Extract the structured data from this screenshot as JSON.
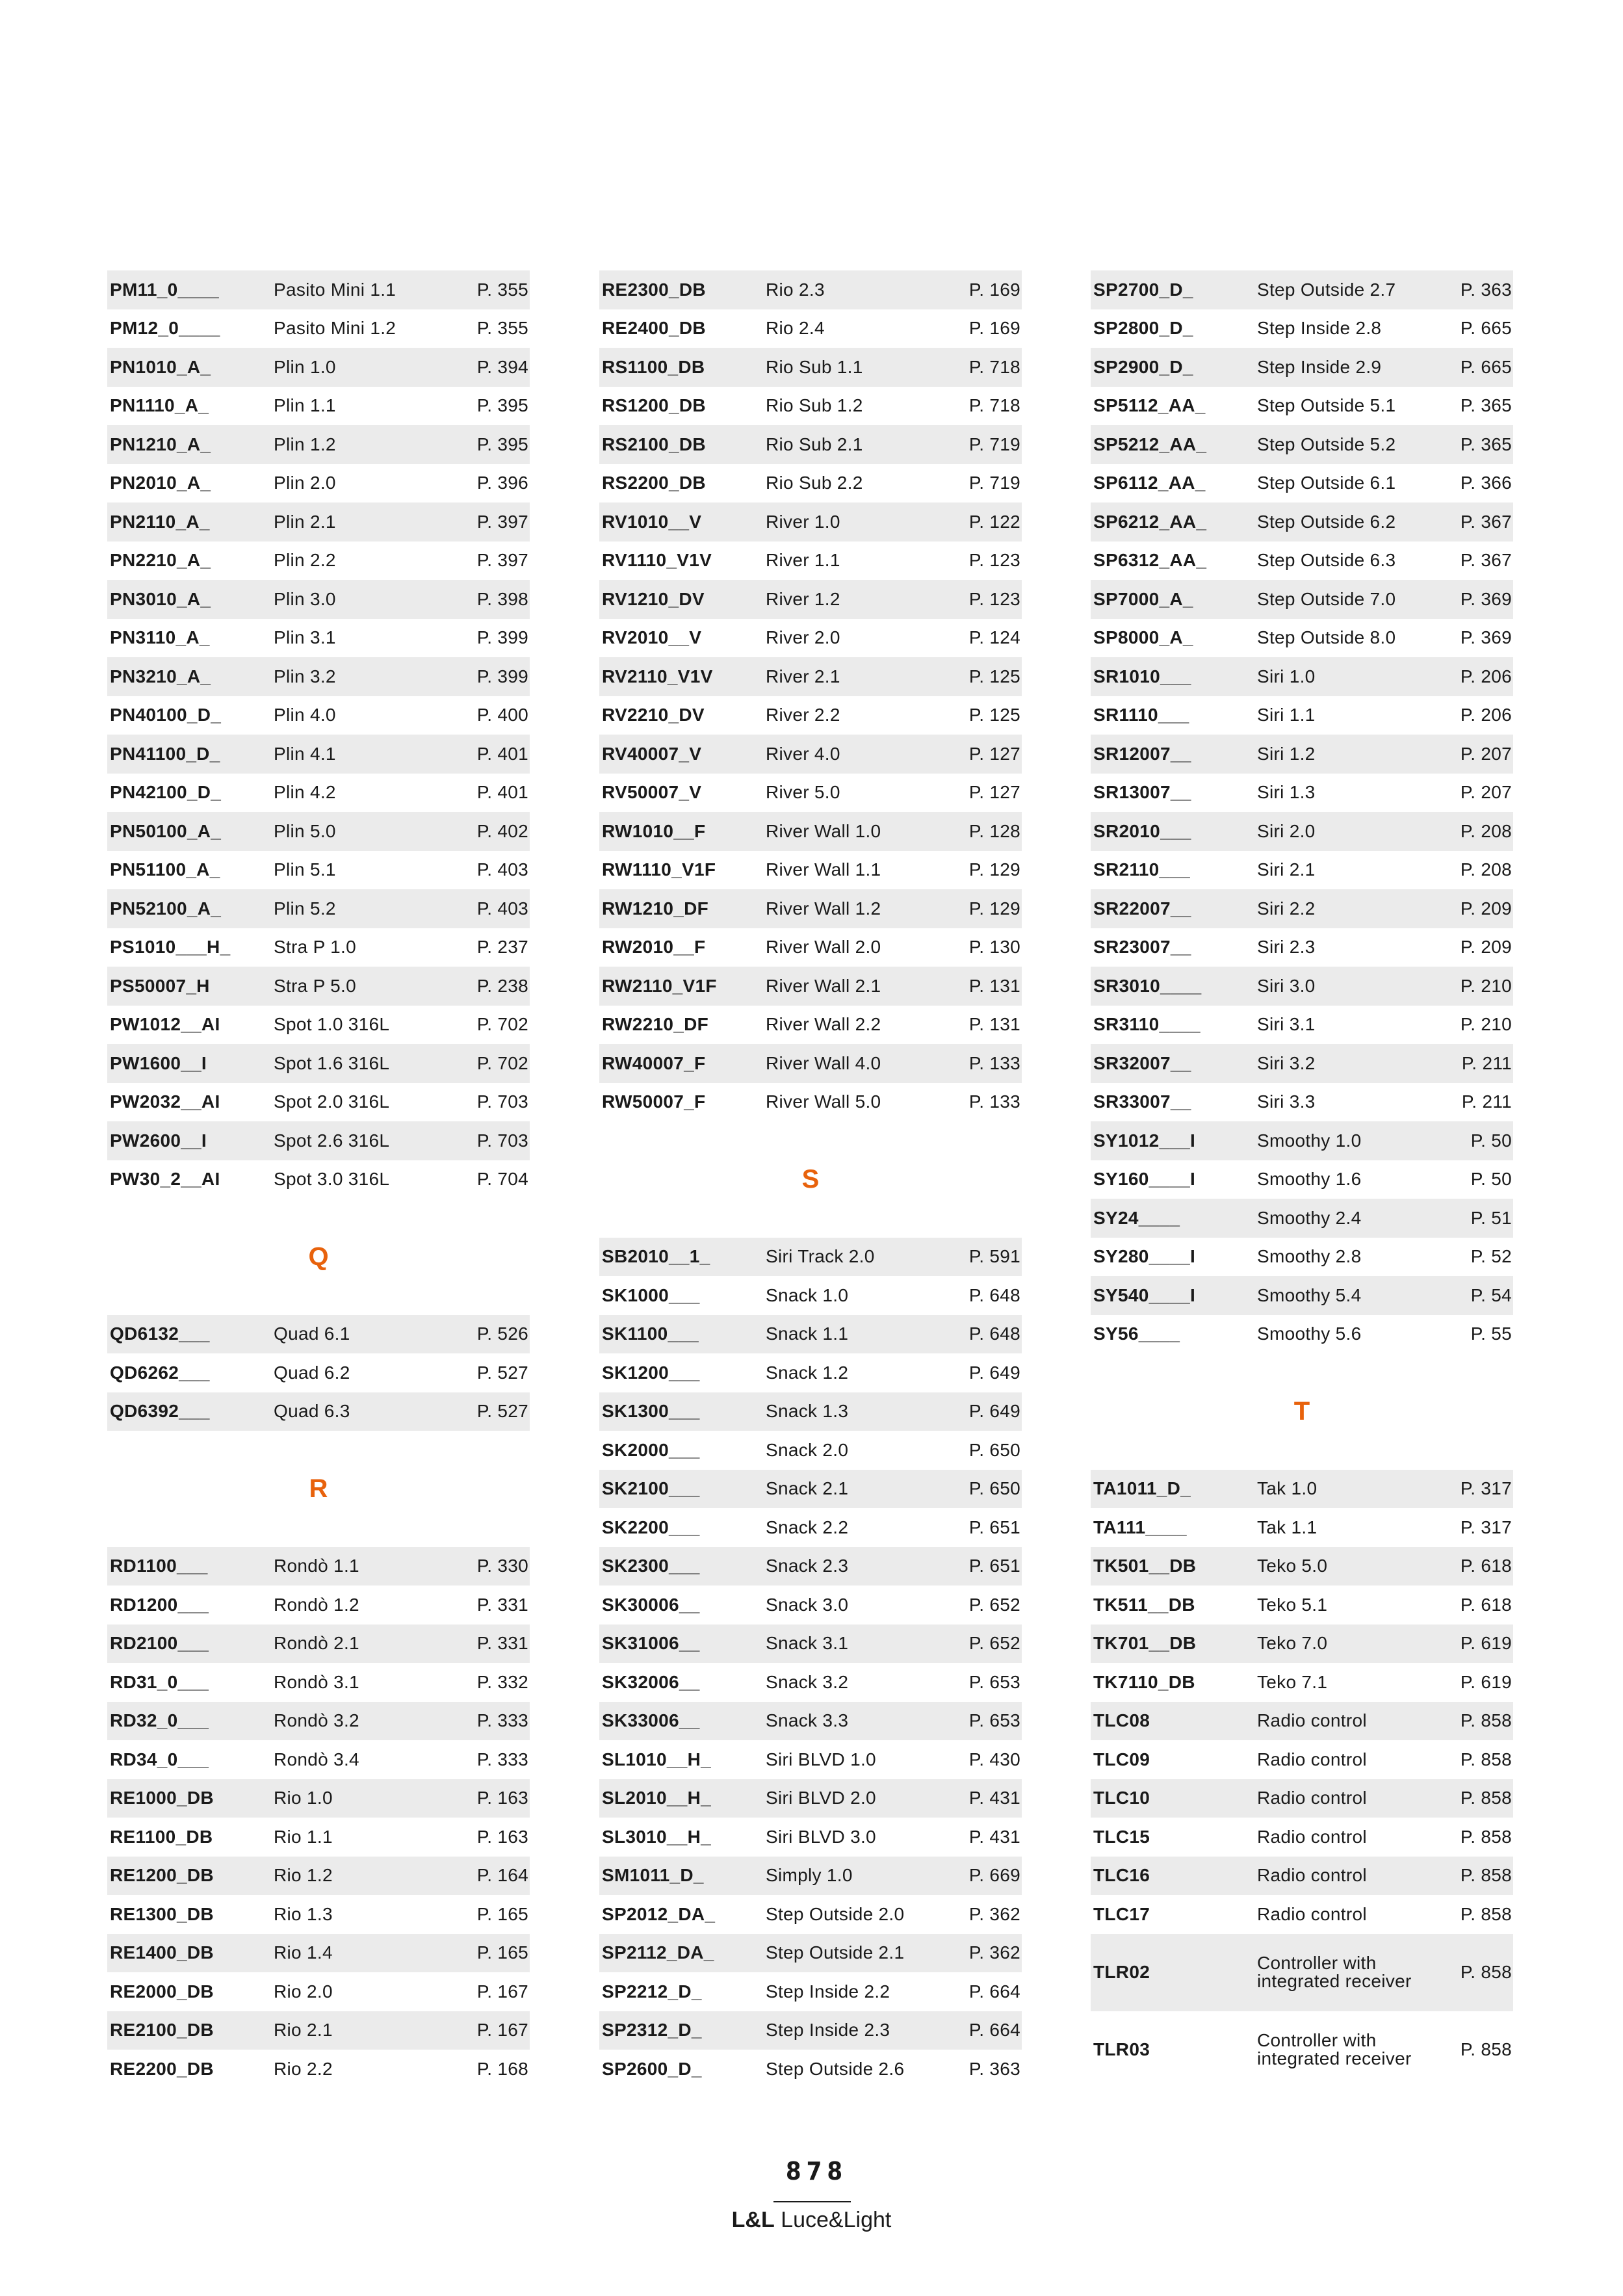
{
  "accent_color": "#e8620c",
  "row_shade_color": "#ebebeb",
  "columns": [
    {
      "blocks": [
        {
          "letter": "",
          "rows": [
            {
              "code": "PM11_0____",
              "name": "Pasito Mini 1.1",
              "page": "P. 355"
            },
            {
              "code": "PM12_0____",
              "name": "Pasito Mini 1.2",
              "page": "P. 355"
            },
            {
              "code": "PN1010_A_",
              "name": "Plin 1.0",
              "page": "P. 394"
            },
            {
              "code": "PN1110_A_",
              "name": "Plin 1.1",
              "page": "P. 395"
            },
            {
              "code": "PN1210_A_",
              "name": "Plin 1.2",
              "page": "P. 395"
            },
            {
              "code": "PN2010_A_",
              "name": "Plin 2.0",
              "page": "P. 396"
            },
            {
              "code": "PN2110_A_",
              "name": "Plin 2.1",
              "page": "P. 397"
            },
            {
              "code": "PN2210_A_",
              "name": "Plin 2.2",
              "page": "P. 397"
            },
            {
              "code": "PN3010_A_",
              "name": "Plin 3.0",
              "page": "P. 398"
            },
            {
              "code": "PN3110_A_",
              "name": "Plin 3.1",
              "page": "P. 399"
            },
            {
              "code": "PN3210_A_",
              "name": "Plin 3.2",
              "page": "P. 399"
            },
            {
              "code": "PN40100_D_",
              "name": "Plin 4.0",
              "page": "P. 400"
            },
            {
              "code": "PN41100_D_",
              "name": "Plin 4.1",
              "page": "P. 401"
            },
            {
              "code": "PN42100_D_",
              "name": "Plin 4.2",
              "page": "P. 401"
            },
            {
              "code": "PN50100_A_",
              "name": "Plin 5.0",
              "page": "P. 402"
            },
            {
              "code": "PN51100_A_",
              "name": "Plin 5.1",
              "page": "P. 403"
            },
            {
              "code": "PN52100_A_",
              "name": "Plin 5.2",
              "page": "P. 403"
            },
            {
              "code": "PS1010___H_",
              "name": "Stra P 1.0",
              "page": "P. 237"
            },
            {
              "code": "PS50007_H",
              "name": "Stra P 5.0",
              "page": "P. 238"
            },
            {
              "code": "PW1012__AI",
              "name": "Spot 1.0 316L",
              "page": "P. 702"
            },
            {
              "code": "PW1600__I",
              "name": "Spot 1.6 316L",
              "page": "P. 702"
            },
            {
              "code": "PW2032__AI",
              "name": "Spot 2.0 316L",
              "page": "P. 703"
            },
            {
              "code": "PW2600__I",
              "name": "Spot 2.6 316L",
              "page": "P. 703"
            },
            {
              "code": "PW30_2__AI",
              "name": "Spot 3.0 316L",
              "page": "P. 704"
            }
          ]
        },
        {
          "letter": "Q",
          "rows": [
            {
              "code": "QD6132___",
              "name": "Quad 6.1",
              "page": "P. 526"
            },
            {
              "code": "QD6262___",
              "name": "Quad 6.2",
              "page": "P. 527"
            },
            {
              "code": "QD6392___",
              "name": "Quad 6.3",
              "page": "P. 527"
            }
          ]
        },
        {
          "letter": "R",
          "rows": [
            {
              "code": "RD1100___",
              "name": "Rondò 1.1",
              "page": "P. 330"
            },
            {
              "code": "RD1200___",
              "name": "Rondò 1.2",
              "page": "P. 331"
            },
            {
              "code": "RD2100___",
              "name": "Rondò 2.1",
              "page": "P. 331"
            },
            {
              "code": "RD31_0___",
              "name": "Rondò 3.1",
              "page": "P. 332"
            },
            {
              "code": "RD32_0___",
              "name": "Rondò 3.2",
              "page": "P. 333"
            },
            {
              "code": "RD34_0___",
              "name": "Rondò 3.4",
              "page": "P. 333"
            },
            {
              "code": "RE1000_DB",
              "name": "Rio 1.0",
              "page": "P. 163"
            },
            {
              "code": "RE1100_DB",
              "name": "Rio 1.1",
              "page": "P. 163"
            },
            {
              "code": "RE1200_DB",
              "name": "Rio 1.2",
              "page": "P. 164"
            },
            {
              "code": "RE1300_DB",
              "name": "Rio 1.3",
              "page": "P. 165"
            },
            {
              "code": "RE1400_DB",
              "name": "Rio 1.4",
              "page": "P. 165"
            },
            {
              "code": "RE2000_DB",
              "name": "Rio 2.0",
              "page": "P. 167"
            },
            {
              "code": "RE2100_DB",
              "name": "Rio 2.1",
              "page": "P. 167"
            },
            {
              "code": "RE2200_DB",
              "name": "Rio 2.2",
              "page": "P. 168"
            }
          ]
        }
      ]
    },
    {
      "blocks": [
        {
          "letter": "",
          "rows": [
            {
              "code": "RE2300_DB",
              "name": "Rio 2.3",
              "page": "P. 169"
            },
            {
              "code": "RE2400_DB",
              "name": "Rio 2.4",
              "page": "P. 169"
            },
            {
              "code": "RS1100_DB",
              "name": "Rio Sub 1.1",
              "page": "P. 718"
            },
            {
              "code": "RS1200_DB",
              "name": "Rio Sub 1.2",
              "page": "P. 718"
            },
            {
              "code": "RS2100_DB",
              "name": "Rio Sub 2.1",
              "page": "P. 719"
            },
            {
              "code": "RS2200_DB",
              "name": "Rio Sub 2.2",
              "page": "P. 719"
            },
            {
              "code": "RV1010__V",
              "name": "River 1.0",
              "page": "P. 122"
            },
            {
              "code": "RV1110_V1V",
              "name": "River 1.1",
              "page": "P. 123"
            },
            {
              "code": "RV1210_DV",
              "name": "River 1.2",
              "page": "P. 123"
            },
            {
              "code": "RV2010__V",
              "name": "River 2.0",
              "page": "P. 124"
            },
            {
              "code": "RV2110_V1V",
              "name": "River 2.1",
              "page": "P. 125"
            },
            {
              "code": "RV2210_DV",
              "name": "River 2.2",
              "page": "P. 125"
            },
            {
              "code": "RV40007_V",
              "name": "River 4.0",
              "page": "P. 127"
            },
            {
              "code": "RV50007_V",
              "name": "River 5.0",
              "page": "P. 127"
            },
            {
              "code": "RW1010__F",
              "name": "River Wall 1.0",
              "page": "P. 128"
            },
            {
              "code": "RW1110_V1F",
              "name": "River Wall 1.1",
              "page": "P. 129"
            },
            {
              "code": "RW1210_DF",
              "name": "River Wall 1.2",
              "page": "P. 129"
            },
            {
              "code": "RW2010__F",
              "name": "River Wall 2.0",
              "page": "P. 130"
            },
            {
              "code": "RW2110_V1F",
              "name": "River Wall 2.1",
              "page": "P. 131"
            },
            {
              "code": "RW2210_DF",
              "name": "River Wall 2.2",
              "page": "P. 131"
            },
            {
              "code": "RW40007_F",
              "name": "River Wall 4.0",
              "page": "P. 133"
            },
            {
              "code": "RW50007_F",
              "name": "River Wall 5.0",
              "page": "P. 133"
            }
          ]
        },
        {
          "letter": "S",
          "rows": [
            {
              "code": "SB2010__1_",
              "name": "Siri Track 2.0",
              "page": "P. 591"
            },
            {
              "code": "SK1000___",
              "name": "Snack 1.0",
              "page": "P. 648"
            },
            {
              "code": "SK1100___",
              "name": "Snack 1.1",
              "page": "P. 648"
            },
            {
              "code": "SK1200___",
              "name": "Snack 1.2",
              "page": "P. 649"
            },
            {
              "code": "SK1300___",
              "name": "Snack 1.3",
              "page": "P. 649"
            },
            {
              "code": "SK2000___",
              "name": "Snack 2.0",
              "page": "P. 650"
            },
            {
              "code": "SK2100___",
              "name": "Snack 2.1",
              "page": "P. 650"
            },
            {
              "code": "SK2200___",
              "name": "Snack 2.2",
              "page": "P. 651"
            },
            {
              "code": "SK2300___",
              "name": "Snack 2.3",
              "page": "P. 651"
            },
            {
              "code": "SK30006__",
              "name": "Snack 3.0",
              "page": "P. 652"
            },
            {
              "code": "SK31006__",
              "name": "Snack 3.1",
              "page": "P. 652"
            },
            {
              "code": "SK32006__",
              "name": "Snack 3.2",
              "page": "P. 653"
            },
            {
              "code": "SK33006__",
              "name": "Snack 3.3",
              "page": "P. 653"
            },
            {
              "code": "SL1010__H_",
              "name": "Siri BLVD 1.0",
              "page": "P. 430"
            },
            {
              "code": "SL2010__H_",
              "name": "Siri BLVD 2.0",
              "page": "P. 431"
            },
            {
              "code": "SL3010__H_",
              "name": "Siri BLVD 3.0",
              "page": "P. 431"
            },
            {
              "code": "SM1011_D_",
              "name": "Simply 1.0",
              "page": "P. 669"
            },
            {
              "code": "SP2012_DA_",
              "name": "Step Outside 2.0",
              "page": "P. 362"
            },
            {
              "code": "SP2112_DA_",
              "name": "Step Outside 2.1",
              "page": "P. 362"
            },
            {
              "code": "SP2212_D_",
              "name": "Step Inside 2.2",
              "page": "P. 664"
            },
            {
              "code": "SP2312_D_",
              "name": "Step Inside 2.3",
              "page": "P. 664"
            },
            {
              "code": "SP2600_D_",
              "name": "Step Outside 2.6",
              "page": "P. 363"
            }
          ]
        }
      ]
    },
    {
      "blocks": [
        {
          "letter": "",
          "rows": [
            {
              "code": "SP2700_D_",
              "name": "Step Outside 2.7",
              "page": "P. 363"
            },
            {
              "code": "SP2800_D_",
              "name": "Step Inside 2.8",
              "page": "P. 665"
            },
            {
              "code": "SP2900_D_",
              "name": "Step Inside 2.9",
              "page": "P. 665"
            },
            {
              "code": "SP5112_AA_",
              "name": "Step Outside 5.1",
              "page": "P. 365"
            },
            {
              "code": "SP5212_AA_",
              "name": "Step Outside 5.2",
              "page": "P. 365"
            },
            {
              "code": "SP6112_AA_",
              "name": "Step Outside 6.1",
              "page": "P. 366"
            },
            {
              "code": "SP6212_AA_",
              "name": "Step Outside 6.2",
              "page": "P. 367"
            },
            {
              "code": "SP6312_AA_",
              "name": "Step Outside 6.3",
              "page": "P. 367"
            },
            {
              "code": "SP7000_A_",
              "name": "Step Outside 7.0",
              "page": "P. 369"
            },
            {
              "code": "SP8000_A_",
              "name": "Step Outside 8.0",
              "page": "P. 369"
            },
            {
              "code": "SR1010___",
              "name": "Siri 1.0",
              "page": "P. 206"
            },
            {
              "code": "SR1110___",
              "name": "Siri 1.1",
              "page": "P. 206"
            },
            {
              "code": "SR12007__",
              "name": "Siri 1.2",
              "page": "P. 207"
            },
            {
              "code": "SR13007__",
              "name": "Siri 1.3",
              "page": "P. 207"
            },
            {
              "code": "SR2010___",
              "name": "Siri 2.0",
              "page": "P. 208"
            },
            {
              "code": "SR2110___",
              "name": "Siri 2.1",
              "page": "P. 208"
            },
            {
              "code": "SR22007__",
              "name": "Siri 2.2",
              "page": "P. 209"
            },
            {
              "code": "SR23007__",
              "name": "Siri 2.3",
              "page": "P. 209"
            },
            {
              "code": "SR3010____",
              "name": "Siri 3.0",
              "page": "P. 210"
            },
            {
              "code": "SR3110____",
              "name": "Siri 3.1",
              "page": "P. 210"
            },
            {
              "code": "SR32007__",
              "name": "Siri 3.2",
              "page": "P. 211"
            },
            {
              "code": "SR33007__",
              "name": "Siri 3.3",
              "page": "P. 211"
            },
            {
              "code": "SY1012___I",
              "name": "Smoothy 1.0",
              "page": "P. 50"
            },
            {
              "code": "SY160____I",
              "name": "Smoothy 1.6",
              "page": "P. 50"
            },
            {
              "code": "SY24____",
              "name": "Smoothy 2.4",
              "page": "P. 51"
            },
            {
              "code": "SY280____I",
              "name": "Smoothy 2.8",
              "page": "P. 52"
            },
            {
              "code": "SY540____I",
              "name": "Smoothy 5.4",
              "page": "P. 54"
            },
            {
              "code": "SY56____",
              "name": "Smoothy 5.6",
              "page": "P. 55"
            }
          ]
        },
        {
          "letter": "T",
          "rows": [
            {
              "code": "TA1011_D_",
              "name": "Tak 1.0",
              "page": "P. 317"
            },
            {
              "code": "TA111____",
              "name": "Tak 1.1",
              "page": "P. 317"
            },
            {
              "code": "TK501__DB",
              "name": "Teko 5.0",
              "page": "P. 618"
            },
            {
              "code": "TK511__DB",
              "name": "Teko 5.1",
              "page": "P. 618"
            },
            {
              "code": "TK701__DB",
              "name": "Teko 7.0",
              "page": "P. 619"
            },
            {
              "code": "TK7110_DB",
              "name": "Teko 7.1",
              "page": "P. 619"
            },
            {
              "code": "TLC08",
              "name": "Radio control",
              "page": "P. 858"
            },
            {
              "code": "TLC09",
              "name": "Radio control",
              "page": "P. 858"
            },
            {
              "code": "TLC10",
              "name": "Radio control",
              "page": "P. 858"
            },
            {
              "code": "TLC15",
              "name": "Radio control",
              "page": "P. 858"
            },
            {
              "code": "TLC16",
              "name": "Radio control",
              "page": "P. 858"
            },
            {
              "code": "TLC17",
              "name": "Radio control",
              "page": "P. 858"
            },
            {
              "code": "TLR02",
              "name": "Controller with integrated receiver",
              "page": "P. 858"
            },
            {
              "code": "TLR03",
              "name": "Controller with integrated receiver",
              "page": "P. 858"
            }
          ]
        }
      ]
    }
  ],
  "footer": {
    "page_number": "878",
    "brand_bold": "L&L",
    "brand_regular": "Luce&Light"
  }
}
